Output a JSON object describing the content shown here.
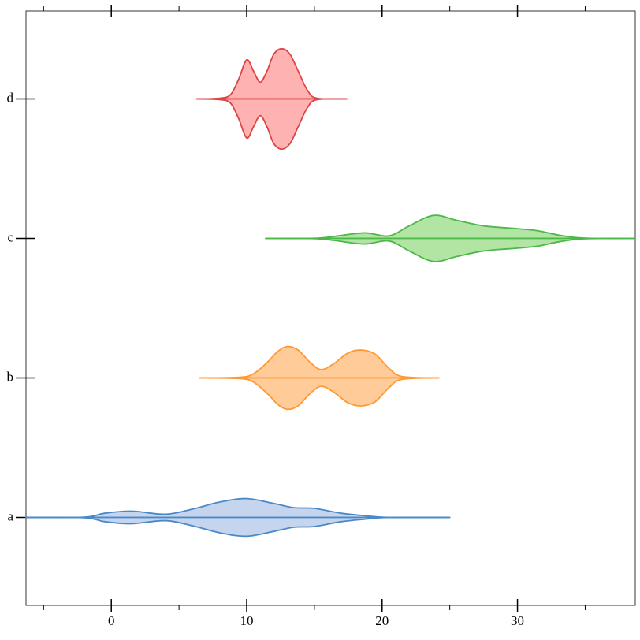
{
  "chart_data": {
    "type": "violin",
    "xlim": [
      -6.3,
      38.7
    ],
    "xticks": [
      0,
      10,
      20,
      30
    ],
    "xminor_ticks": [
      -5,
      5,
      15,
      25,
      35
    ],
    "ylim": [
      -0.63,
      3.63
    ],
    "series": [
      {
        "name": "a",
        "color": "#4a89c8",
        "fill": "#c6d5ee",
        "x": [
          -6.3,
          -2,
          -0.5,
          1.5,
          4,
          6,
          8,
          10,
          12,
          13.5,
          15,
          17,
          19,
          20.5,
          25
        ],
        "values": [
          0,
          0.002,
          0.03,
          0.045,
          0.023,
          0.06,
          0.11,
          0.135,
          0.1,
          0.07,
          0.065,
          0.03,
          0.01,
          0,
          0
        ]
      },
      {
        "name": "b",
        "color": "#ff9933",
        "fill": "#ffcc99",
        "x": [
          6.5,
          9.5,
          10.5,
          11.5,
          12.3,
          13,
          13.8,
          14.7,
          15.5,
          16.4,
          17.5,
          18.5,
          19.5,
          20.5,
          21.5,
          24.2
        ],
        "values": [
          0,
          0.005,
          0.03,
          0.11,
          0.19,
          0.225,
          0.2,
          0.11,
          0.06,
          0.1,
          0.18,
          0.2,
          0.17,
          0.07,
          0.01,
          0
        ]
      },
      {
        "name": "c",
        "color": "#4cb848",
        "fill": "#b2e4a4",
        "x": [
          11.4,
          15,
          16.5,
          18.7,
          20.5,
          22,
          23.8,
          25.5,
          27.5,
          30,
          31.5,
          33,
          34.5,
          36,
          38.7
        ],
        "values": [
          0,
          0.001,
          0.015,
          0.04,
          0.018,
          0.09,
          0.165,
          0.13,
          0.09,
          0.07,
          0.055,
          0.025,
          0.005,
          0,
          0
        ]
      },
      {
        "name": "d",
        "color": "#dd4444",
        "fill": "#ffb2b2",
        "x": [
          6.3,
          8,
          8.8,
          9.4,
          10,
          10.5,
          11,
          11.5,
          12,
          12.6,
          13.2,
          13.8,
          14.5,
          15.2,
          17.4
        ],
        "values": [
          0,
          0.005,
          0.03,
          0.14,
          0.28,
          0.2,
          0.12,
          0.2,
          0.32,
          0.36,
          0.32,
          0.2,
          0.06,
          0.005,
          0
        ]
      }
    ]
  }
}
